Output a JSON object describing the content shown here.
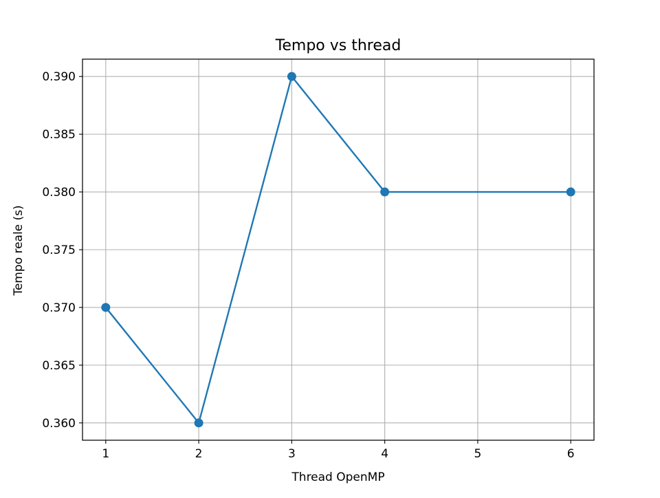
{
  "chart_data": {
    "type": "line",
    "title": "Tempo vs thread",
    "xlabel": "Thread OpenMP",
    "ylabel": "Tempo reale (s)",
    "x": [
      1,
      2,
      3,
      4,
      6
    ],
    "series": [
      {
        "values": [
          0.37,
          0.36,
          0.39,
          0.38,
          0.38
        ]
      }
    ],
    "xlim": [
      0.75,
      6.25
    ],
    "ylim": [
      0.3585,
      0.3915
    ],
    "xticks": [
      1,
      2,
      3,
      4,
      5,
      6
    ],
    "xtick_labels": [
      "1",
      "2",
      "3",
      "4",
      "5",
      "6"
    ],
    "yticks": [
      0.36,
      0.365,
      0.37,
      0.375,
      0.38,
      0.385,
      0.39
    ],
    "ytick_labels": [
      "0.360",
      "0.365",
      "0.370",
      "0.375",
      "0.380",
      "0.385",
      "0.390"
    ],
    "grid": true,
    "markers": "circle",
    "colors": {
      "line": "#1f77b4",
      "grid": "#b0b0b0",
      "axes": "#000000"
    }
  }
}
